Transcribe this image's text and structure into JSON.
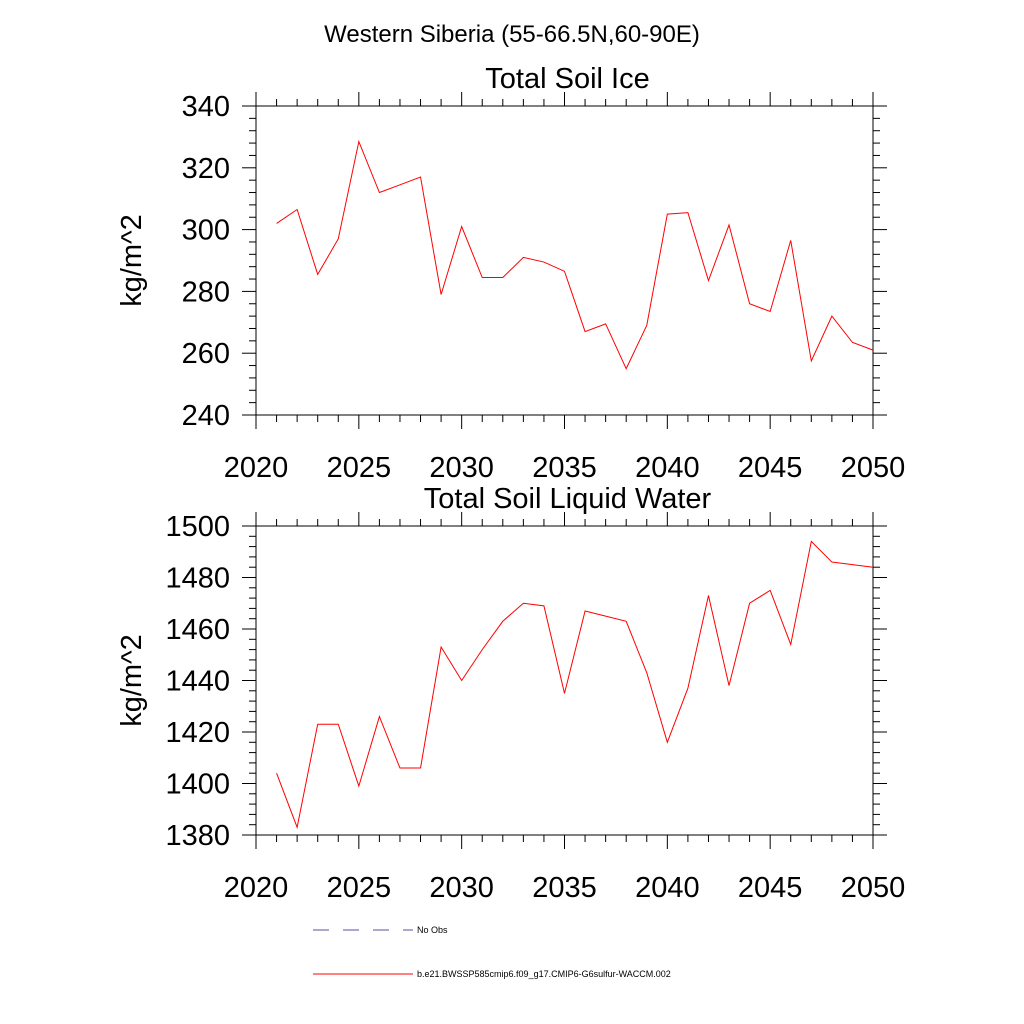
{
  "page_title": "Western Siberia (55-66.5N,60-90E)",
  "chart_data": [
    {
      "type": "line",
      "title": "Total Soil Ice",
      "xlabel": "",
      "ylabel": "kg/m^2",
      "xlim": [
        2020,
        2050
      ],
      "ylim": [
        240,
        340
      ],
      "xticks": [
        2020,
        2025,
        2030,
        2035,
        2040,
        2045,
        2050
      ],
      "yticks": [
        240,
        260,
        280,
        300,
        320,
        340
      ],
      "series": [
        {
          "name": "b.e21.BWSSP585cmip6.f09_g17.CMIP6-G6sulfur-WACCM.002",
          "color": "#ff0000",
          "x": [
            2021,
            2022,
            2023,
            2024,
            2025,
            2026,
            2027,
            2028,
            2029,
            2030,
            2031,
            2032,
            2033,
            2034,
            2035,
            2036,
            2037,
            2038,
            2039,
            2040,
            2041,
            2042,
            2043,
            2044,
            2045,
            2046,
            2047,
            2048,
            2049,
            2050
          ],
          "values": [
            302,
            306.5,
            285.5,
            297,
            328.5,
            312,
            314.5,
            317,
            279,
            301,
            284.5,
            284.5,
            291,
            289.5,
            286.5,
            267,
            269.5,
            255,
            269,
            305,
            305.5,
            283.5,
            301.5,
            276,
            273.5,
            296.5,
            257.5,
            272,
            263.5,
            261
          ]
        }
      ]
    },
    {
      "type": "line",
      "title": "Total Soil Liquid Water",
      "xlabel": "",
      "ylabel": "kg/m^2",
      "xlim": [
        2020,
        2050
      ],
      "ylim": [
        1380,
        1500
      ],
      "xticks": [
        2020,
        2025,
        2030,
        2035,
        2040,
        2045,
        2050
      ],
      "yticks": [
        1380,
        1400,
        1420,
        1440,
        1460,
        1480,
        1500
      ],
      "series": [
        {
          "name": "b.e21.BWSSP585cmip6.f09_g17.CMIP6-G6sulfur-WACCM.002",
          "color": "#ff0000",
          "x": [
            2021,
            2022,
            2023,
            2024,
            2025,
            2026,
            2027,
            2028,
            2029,
            2030,
            2031,
            2032,
            2033,
            2034,
            2035,
            2036,
            2037,
            2038,
            2039,
            2040,
            2041,
            2042,
            2043,
            2044,
            2045,
            2046,
            2047,
            2048,
            2049,
            2050
          ],
          "values": [
            1404,
            1383,
            1423,
            1423,
            1399,
            1426,
            1406,
            1406,
            1453,
            1440,
            1452,
            1463,
            1470,
            1469,
            1435,
            1467,
            1465,
            1463,
            1443,
            1416,
            1437,
            1473,
            1438,
            1470,
            1475,
            1454,
            1494,
            1486,
            1485,
            1484
          ]
        }
      ]
    }
  ],
  "legend": {
    "items": [
      {
        "label": "No Obs",
        "color": "#5050a0",
        "style": "dashed"
      },
      {
        "label": "b.e21.BWSSP585cmip6.f09_g17.CMIP6-G6sulfur-WACCM.002",
        "color": "#ff0000",
        "style": "solid"
      }
    ]
  }
}
